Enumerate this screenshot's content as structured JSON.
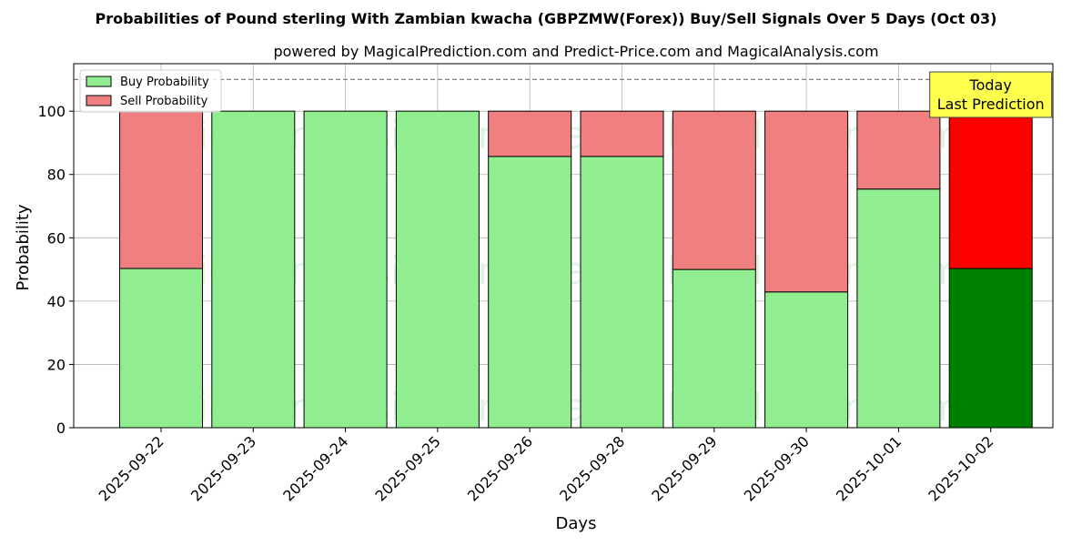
{
  "chart_data": {
    "type": "bar",
    "stacked": true,
    "title": "Probabilities of Pound sterling With Zambian kwacha (GBPZMW(Forex)) Buy/Sell Signals Over 5 Days (Oct 03)",
    "subtitle": "powered by MagicalPrediction.com and Predict-Price.com and MagicalAnalysis.com",
    "xlabel": "Days",
    "ylabel": "Probability",
    "ylim": [
      0,
      115
    ],
    "yticks": [
      0,
      20,
      40,
      60,
      80,
      100
    ],
    "grid": true,
    "legend_position": "top-left",
    "reference_line": 110,
    "categories": [
      "2025-09-22",
      "2025-09-23",
      "2025-09-24",
      "2025-09-25",
      "2025-09-26",
      "2025-09-28",
      "2025-09-29",
      "2025-09-30",
      "2025-10-01",
      "2025-10-02"
    ],
    "series": [
      {
        "name": "Buy Probability",
        "values": [
          50.3,
          100,
          100,
          100,
          85.7,
          85.7,
          50,
          42.9,
          75.4,
          50.3
        ],
        "color": "#90ee90",
        "highlight_color": "#008000"
      },
      {
        "name": "Sell Probability",
        "values": [
          49.7,
          0,
          0,
          0,
          14.3,
          14.3,
          50,
          57.1,
          24.6,
          49.7
        ],
        "color": "#f08080",
        "highlight_color": "#ff0000"
      }
    ],
    "highlight_index": 9,
    "annotation": {
      "line1": "Today",
      "line2": "Last Prediction",
      "color": "#ffff4d"
    },
    "watermarks": [
      "MagicalAnalysis.com",
      "MagicalPrediction.com"
    ]
  }
}
